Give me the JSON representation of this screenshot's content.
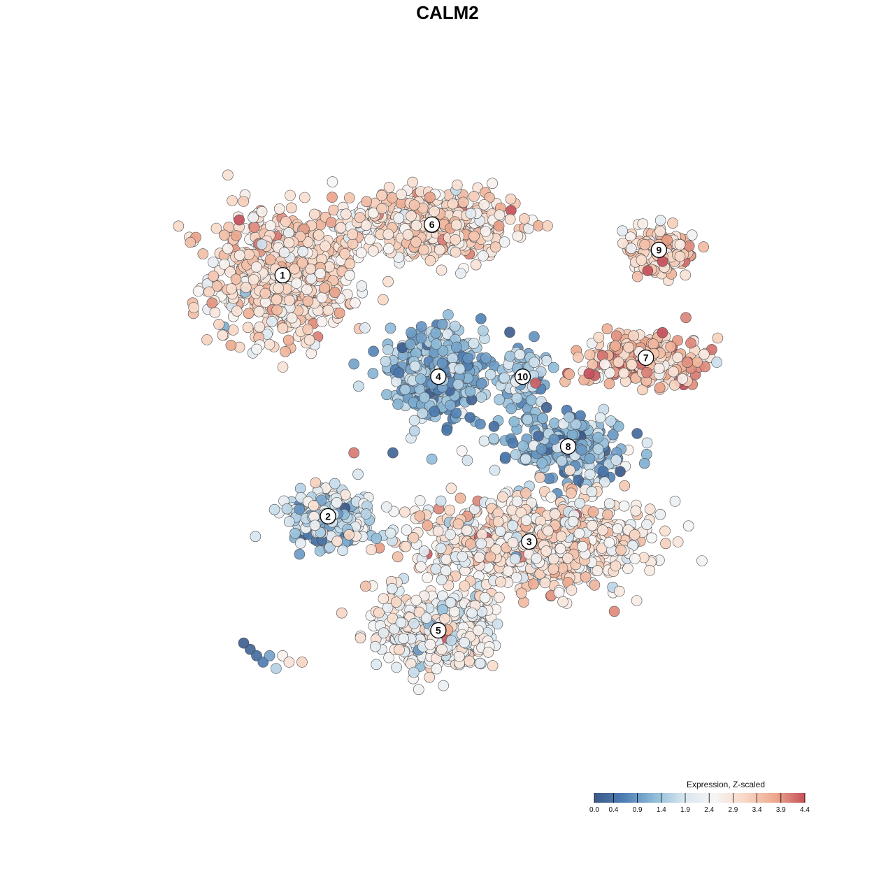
{
  "chart_data": {
    "type": "scatter",
    "title": "CALM2",
    "xlim": [
      0,
      100
    ],
    "ylim": [
      0,
      100
    ],
    "axes_visible": false,
    "grid": false,
    "point_style": {
      "stroke": "#4d4d4d",
      "opacity": 0.92
    },
    "clusters": [
      {
        "label": "1",
        "x": 22,
        "y": 77,
        "sx": 9.0,
        "sy": 8.5,
        "n": 620,
        "mean": 3.0,
        "sd": 0.45
      },
      {
        "label": "6",
        "x": 45,
        "y": 85,
        "sx": 10.0,
        "sy": 4.2,
        "n": 520,
        "mean": 3.0,
        "sd": 0.45
      },
      {
        "label": "9",
        "x": 80,
        "y": 81,
        "sx": 4.5,
        "sy": 2.6,
        "n": 150,
        "mean": 3.1,
        "sd": 0.5
      },
      {
        "label": "7",
        "x": 78,
        "y": 64,
        "sx": 7.5,
        "sy": 3.5,
        "n": 260,
        "mean": 3.4,
        "sd": 0.5
      },
      {
        "label": "4",
        "x": 46,
        "y": 61,
        "sx": 5.8,
        "sy": 5.2,
        "n": 480,
        "mean": 1.2,
        "sd": 0.45
      },
      {
        "label": "10",
        "x": 59,
        "y": 61,
        "sx": 3.2,
        "sy": 4.0,
        "n": 90,
        "mean": 1.4,
        "sd": 0.5
      },
      {
        "label": "8",
        "x": 66,
        "y": 50,
        "sx": 7.5,
        "sy": 3.8,
        "n": 260,
        "mean": 1.2,
        "sd": 0.5
      },
      {
        "label": "2",
        "x": 29,
        "y": 39,
        "sx": 5.0,
        "sy": 3.5,
        "n": 280,
        "mean": 1.7,
        "sd": 0.6
      },
      {
        "label": "3",
        "x": 60,
        "y": 35,
        "sx": 14.0,
        "sy": 5.5,
        "n": 950,
        "mean": 2.8,
        "sd": 0.55
      },
      {
        "label": "5",
        "x": 46,
        "y": 21,
        "sx": 7.0,
        "sy": 4.8,
        "n": 520,
        "mean": 2.4,
        "sd": 0.5
      }
    ],
    "outliers": [
      {
        "x": 17,
        "y": 18,
        "v": 0.2
      },
      {
        "x": 18,
        "y": 17,
        "v": 0.3
      },
      {
        "x": 19,
        "y": 16,
        "v": 0.6
      },
      {
        "x": 16,
        "y": 19,
        "v": 0.1
      },
      {
        "x": 20,
        "y": 17,
        "v": 1.0
      },
      {
        "x": 22,
        "y": 17,
        "v": 2.6
      },
      {
        "x": 23,
        "y": 16,
        "v": 2.9
      },
      {
        "x": 21,
        "y": 15,
        "v": 1.6
      },
      {
        "x": 25,
        "y": 16,
        "v": 3.2
      },
      {
        "x": 33,
        "y": 49,
        "v": 4.1
      },
      {
        "x": 39,
        "y": 49,
        "v": 0.2
      },
      {
        "x": 45,
        "y": 48,
        "v": 1.3
      },
      {
        "x": 61,
        "y": 60,
        "v": 4.3
      },
      {
        "x": 57,
        "y": 68,
        "v": 0.1
      },
      {
        "x": 36,
        "y": 65,
        "v": 0.7
      },
      {
        "x": 33,
        "y": 63,
        "v": 1.0
      }
    ],
    "legend": {
      "title": "Expression, Z-scaled",
      "position": "bottom-right",
      "min": 0.0,
      "max": 4.4,
      "ticks": [
        0.0,
        0.4,
        0.9,
        1.4,
        1.9,
        2.4,
        2.9,
        3.4,
        3.9,
        4.4
      ],
      "tick_labels": [
        "0.0",
        "0.4",
        "0.9",
        "1.4",
        "1.9",
        "2.4",
        "2.9",
        "3.4",
        "3.9",
        "4.4"
      ],
      "colors": [
        "#3b5a8a",
        "#4f7fb4",
        "#8ebbd8",
        "#d8e6f0",
        "#f7f5f4",
        "#f8d8c6",
        "#eda98e",
        "#c5505b"
      ]
    }
  }
}
